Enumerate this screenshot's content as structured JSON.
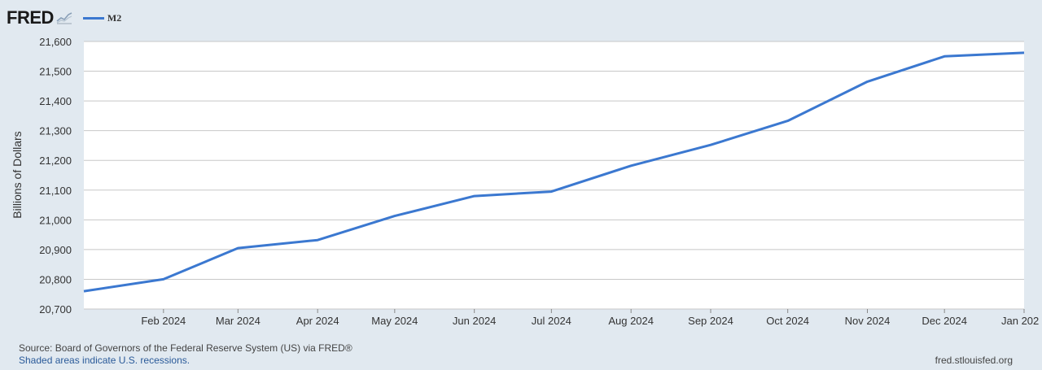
{
  "header": {
    "logo_text": "FRED",
    "logo_icon": "line-graph-icon"
  },
  "colors": {
    "background": "#e1e9f0",
    "plot_background": "#ffffff",
    "series_line": "#3b78d0",
    "gridline": "#c8c8c8"
  },
  "chart_data": {
    "type": "line",
    "title": "",
    "xlabel": "",
    "ylabel": "Billions of Dollars",
    "x": [
      "2024-01-01",
      "2024-02-01",
      "2024-03-01",
      "2024-04-01",
      "2024-05-01",
      "2024-06-01",
      "2024-07-01",
      "2024-08-01",
      "2024-09-01",
      "2024-10-01",
      "2024-11-01",
      "2024-12-01",
      "2025-01-01"
    ],
    "x_tick_labels": [
      "Feb 2024",
      "Mar 2024",
      "Apr 2024",
      "May 2024",
      "Jun 2024",
      "Jul 2024",
      "Aug 2024",
      "Sep 2024",
      "Oct 2024",
      "Nov 2024",
      "Dec 2024",
      "Jan 202"
    ],
    "y_tick_labels": [
      "21,600",
      "21,500",
      "21,400",
      "21,300",
      "21,200",
      "21,100",
      "21,000",
      "20,900",
      "20,800",
      "20,700"
    ],
    "y_ticks": [
      21600,
      21500,
      21400,
      21300,
      21200,
      21100,
      21000,
      20900,
      20800,
      20700
    ],
    "ylim": [
      20700,
      21600
    ],
    "grid": true,
    "legend": "top-left",
    "series": [
      {
        "name": "M2",
        "values": [
          20760,
          20800,
          20905,
          20932,
          21013,
          21080,
          21095,
          21182,
          21252,
          21333,
          21465,
          21550,
          21562
        ]
      }
    ]
  },
  "footer": {
    "source": "Source: Board of Governors of the Federal Reserve System (US) via FRED®",
    "note": "Shaded areas indicate U.S. recessions.",
    "url": "fred.stlouisfed.org"
  }
}
